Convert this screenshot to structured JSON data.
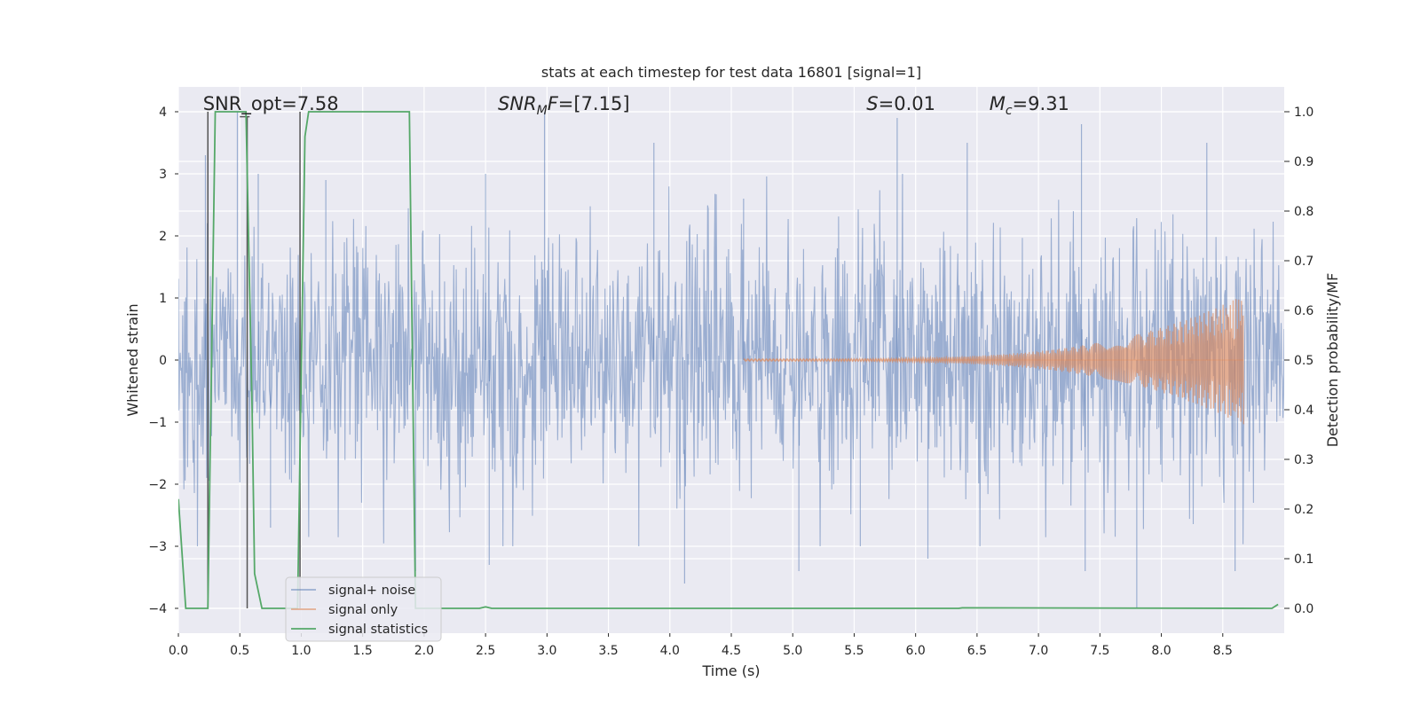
{
  "chart_data": {
    "type": "line",
    "title": "stats at each timestep for test data 16801 [signal=1]",
    "xlabel": "Time (s)",
    "ylabel_left": "Whitened strain",
    "ylabel_right": "Detection probability/MF",
    "xlim": [
      0.0,
      9.0
    ],
    "ylim_left": [
      -4.4,
      4.4
    ],
    "ylim_right": [
      -0.05,
      1.05
    ],
    "xticks": [
      "0.0",
      "0.5",
      "1.0",
      "1.5",
      "2.0",
      "2.5",
      "3.0",
      "3.5",
      "4.0",
      "4.5",
      "5.0",
      "5.5",
      "6.0",
      "6.5",
      "7.0",
      "7.5",
      "8.0",
      "8.5"
    ],
    "yticks_left": [
      "4",
      "3",
      "2",
      "1",
      "0",
      "−1",
      "−2",
      "−3",
      "−4"
    ],
    "yticks_right": [
      "1.0",
      "0.9",
      "0.8",
      "0.7",
      "0.6",
      "0.5",
      "0.4",
      "0.3",
      "0.2",
      "0.1",
      "0.0"
    ],
    "grid": true,
    "legend_position": "lower-left",
    "annotations": {
      "snr_opt": {
        "text": "SNR_opt=7.58",
        "x": 0.2
      },
      "snr_mf": {
        "prefix": "SNR",
        "sub": "M",
        "suffix": "F=[7.15]",
        "x": 2.6
      },
      "s_val": {
        "prefix": "S",
        "suffix": "=0.01",
        "x": 5.6
      },
      "mc_val": {
        "prefix": "M",
        "sub": "c",
        "suffix": "=9.31",
        "x": 6.6
      }
    },
    "series": [
      {
        "name": "signal+ noise",
        "color": "#4c72b0",
        "opacity": 0.5,
        "kind": "noise",
        "x_range": [
          0.0,
          9.0
        ],
        "typical_amplitude": 1.0,
        "peaks_positive": [
          [
            0.22,
            3.3
          ],
          [
            0.48,
            4.0
          ],
          [
            0.65,
            3.0
          ],
          [
            1.2,
            2.9
          ],
          [
            2.5,
            3.0
          ],
          [
            2.98,
            4.0
          ],
          [
            3.87,
            3.5
          ],
          [
            4.6,
            2.6
          ],
          [
            5.85,
            3.9
          ],
          [
            6.42,
            3.5
          ],
          [
            7.35,
            3.8
          ],
          [
            8.37,
            3.5
          ]
        ],
        "peaks_negative": [
          [
            0.75,
            -2.7
          ],
          [
            1.93,
            -3.4
          ],
          [
            2.53,
            -3.3
          ],
          [
            4.12,
            -3.6
          ],
          [
            5.05,
            -3.4
          ],
          [
            5.55,
            -3.0
          ],
          [
            6.1,
            -3.2
          ],
          [
            7.38,
            -3.4
          ],
          [
            7.8,
            -4.0
          ],
          [
            8.6,
            -3.4
          ]
        ]
      },
      {
        "name": "signal only",
        "color": "#dd8452",
        "opacity": 0.6,
        "kind": "chirp",
        "x_start": 4.6,
        "x_end": 8.67,
        "amplitude_start": 0.02,
        "amplitude_end": 1.05
      },
      {
        "name": "signal statistics",
        "color": "#55a868",
        "axis": "right",
        "x": [
          0.0,
          0.06,
          0.24,
          0.3,
          0.55,
          0.6,
          0.62,
          0.68,
          0.97,
          1.03,
          1.06,
          1.88,
          1.93,
          1.97,
          2.45,
          2.5,
          2.55,
          6.35,
          6.38,
          8.9,
          8.95
        ],
        "y": [
          0.22,
          0.0,
          0.0,
          1.0,
          1.0,
          0.4,
          0.07,
          0.0,
          0.0,
          0.95,
          1.0,
          1.0,
          0.0,
          0.0,
          0.0,
          0.003,
          0.0,
          0.0,
          0.001,
          0.0,
          0.008
        ]
      }
    ],
    "vertical_markers": {
      "color": "#555555",
      "segments": [
        {
          "x": 0.24,
          "y_from": 0.0,
          "y_to": 1.0
        },
        {
          "x": 0.56,
          "y_from": 0.0,
          "y_to": 0.99
        },
        {
          "x": 0.99,
          "y_from": 0.0,
          "y_to": 1.0
        }
      ],
      "horizontal_ticks": [
        {
          "x_from": 0.5,
          "x_to": 0.58,
          "y": 0.99
        }
      ]
    },
    "legend": [
      "signal+ noise",
      "signal only",
      "signal statistics"
    ]
  }
}
